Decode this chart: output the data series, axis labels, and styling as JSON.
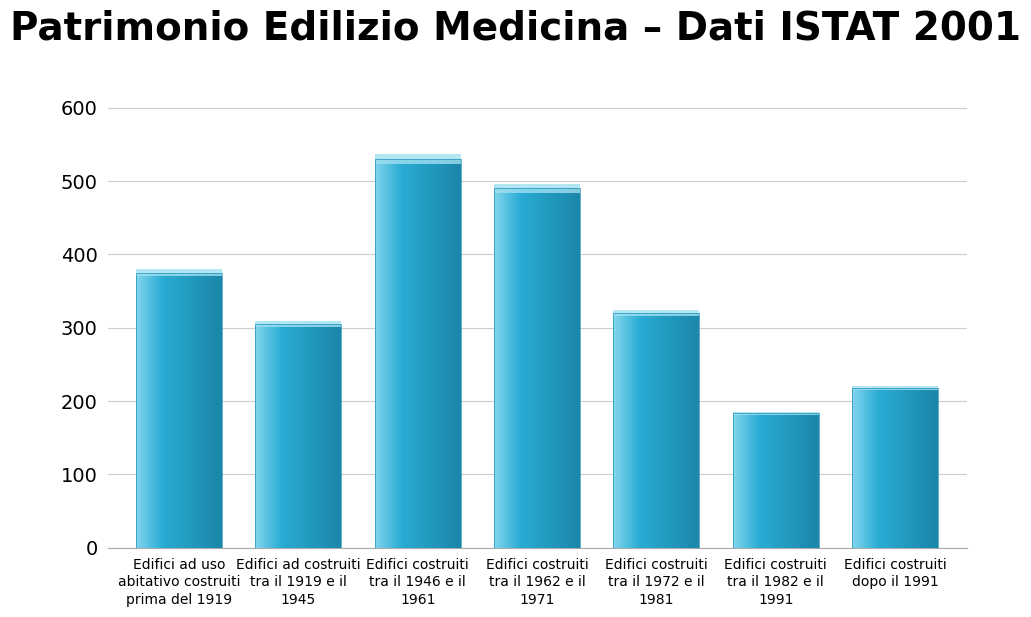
{
  "categories": [
    "Edifici ad uso\nabitativo costruiti\nprima del 1919",
    "Edifici ad costruiti\ntra il 1919 e il\n1945",
    "Edifici costruiti\ntra il 1946 e il\n1961",
    "Edifici costruiti\ntra il 1962 e il\n1971",
    "Edifici costruiti\ntra il 1972 e il\n1981",
    "Edifici costruiti\ntra il 1982 e il\n1991",
    "Edifici costruiti\ndopo il 1991"
  ],
  "values": [
    375,
    305,
    530,
    490,
    320,
    183,
    218
  ],
  "bar_color_main": "#29ABD4",
  "bar_color_light": "#7FD4EC",
  "bar_color_dark": "#1A85A8",
  "bar_color_top": "#A0E0F0",
  "title": "Patrimonio Edilizio Medicina – Dati ISTAT 2001",
  "title_fontsize": 28,
  "title_fontweight": "bold",
  "ylim": [
    0,
    640
  ],
  "yticks": [
    0,
    100,
    200,
    300,
    400,
    500,
    600
  ],
  "ytick_fontsize": 14,
  "xtick_fontsize": 10,
  "grid_color": "#CCCCCC",
  "background_color": "#FFFFFF"
}
